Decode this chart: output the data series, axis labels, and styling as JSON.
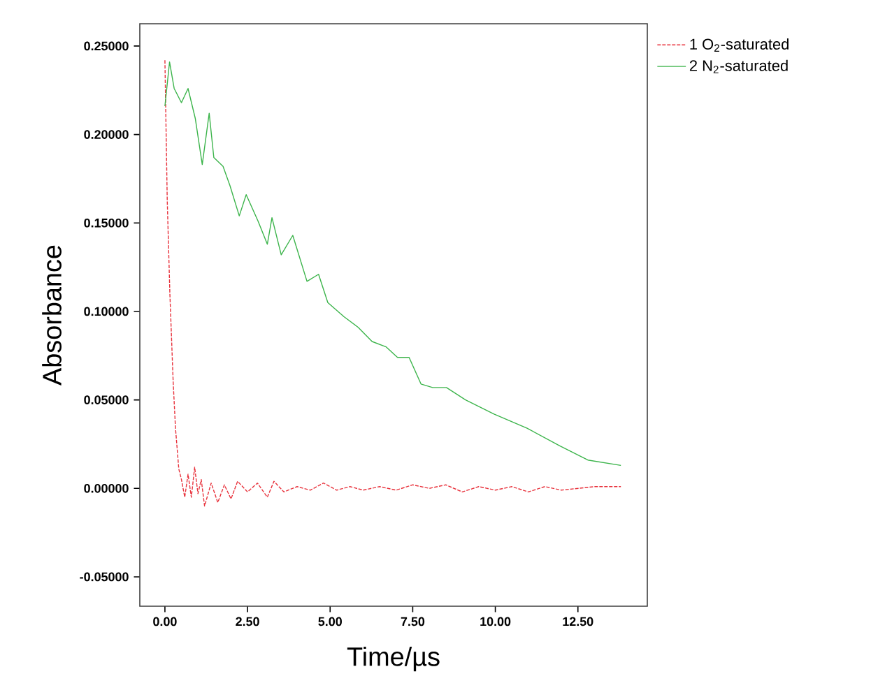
{
  "chart_data": {
    "type": "line",
    "xlabel": "Time/µs",
    "ylabel": "Absorbance",
    "xlim": [
      -0.76,
      14.6
    ],
    "ylim": [
      -0.0666,
      0.2626
    ],
    "xticks": [
      {
        "value": 0,
        "label": "0.00"
      },
      {
        "value": 2.5,
        "label": "2.50"
      },
      {
        "value": 5,
        "label": "5.00"
      },
      {
        "value": 7.5,
        "label": "7.50"
      },
      {
        "value": 10,
        "label": "10.00"
      },
      {
        "value": 12.5,
        "label": "12.50"
      }
    ],
    "yticks": [
      {
        "value": -0.05,
        "label": "-0.05000"
      },
      {
        "value": 0,
        "label": "0.00000"
      },
      {
        "value": 0.05,
        "label": "0.05000"
      },
      {
        "value": 0.1,
        "label": "0.10000"
      },
      {
        "value": 0.15,
        "label": "0.15000"
      },
      {
        "value": 0.2,
        "label": "0.20000"
      },
      {
        "value": 0.25,
        "label": "0.25000"
      }
    ],
    "legend": "top right",
    "grid": false,
    "marker": "none",
    "series": [
      {
        "name": "1 O$_{2}$-saturated",
        "color": "#e8323c",
        "line_style": "dashed",
        "x": [
          0,
          0.07,
          0.15,
          0.25,
          0.32,
          0.42,
          0.5,
          0.6,
          0.7,
          0.8,
          0.9,
          1.0,
          1.1,
          1.2,
          1.4,
          1.6,
          1.8,
          2.0,
          2.2,
          2.5,
          2.8,
          3.1,
          3.3,
          3.6,
          4.0,
          4.4,
          4.8,
          5.2,
          5.6,
          6.0,
          6.5,
          7.0,
          7.5,
          8.0,
          8.5,
          9.0,
          9.5,
          10,
          10.5,
          11,
          11.5,
          12,
          12.5,
          13,
          13.8
        ],
        "values": [
          0.242,
          0.163,
          0.11,
          0.06,
          0.034,
          0.011,
          0.005,
          -0.005,
          0.008,
          -0.005,
          0.012,
          -0.003,
          0.005,
          -0.01,
          0.003,
          -0.008,
          0.002,
          -0.006,
          0.004,
          -0.002,
          0.003,
          -0.005,
          0.004,
          -0.002,
          0.001,
          -0.001,
          0.003,
          -0.001,
          0.001,
          -0.001,
          0.001,
          -0.001,
          0.002,
          0,
          0.002,
          -0.002,
          0.001,
          -0.001,
          0.001,
          -0.002,
          0.001,
          -0.001,
          0,
          0.001,
          0.001
        ]
      },
      {
        "name": "2 N$_{2}$-saturated",
        "color": "#3cb44b",
        "line_style": "solid",
        "x": [
          0,
          0.14,
          0.28,
          0.5,
          0.7,
          0.92,
          1.13,
          1.34,
          1.48,
          1.76,
          1.97,
          2.25,
          2.46,
          2.82,
          3.1,
          3.24,
          3.52,
          3.87,
          4.3,
          4.65,
          4.93,
          5.42,
          5.85,
          6.27,
          6.69,
          7.04,
          7.39,
          7.75,
          8.1,
          8.52,
          9.1,
          9.96,
          10.96,
          11.95,
          12.8,
          13.8
        ],
        "values": [
          0.216,
          0.241,
          0.226,
          0.218,
          0.226,
          0.209,
          0.183,
          0.212,
          0.187,
          0.182,
          0.171,
          0.154,
          0.166,
          0.151,
          0.138,
          0.153,
          0.132,
          0.143,
          0.117,
          0.121,
          0.105,
          0.097,
          0.091,
          0.083,
          0.08,
          0.074,
          0.074,
          0.059,
          0.057,
          0.057,
          0.05,
          0.042,
          0.034,
          0.024,
          0.016,
          0.013
        ]
      }
    ]
  }
}
